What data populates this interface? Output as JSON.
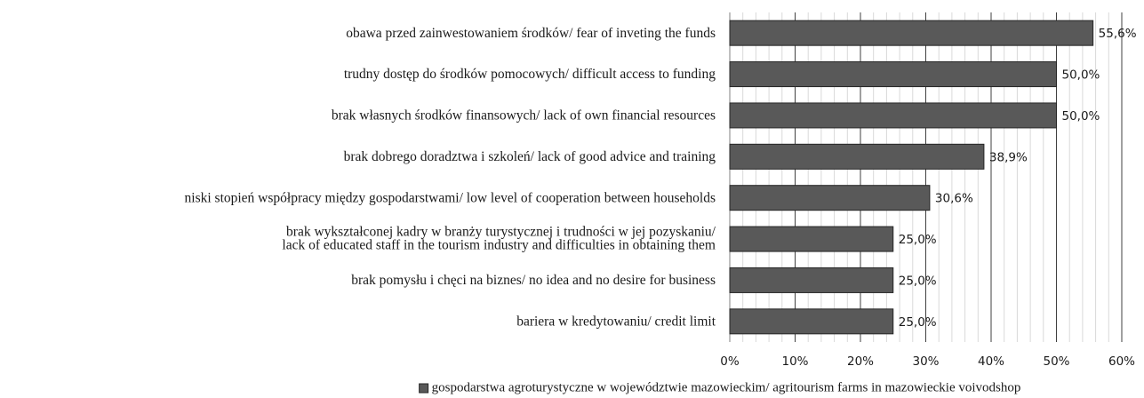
{
  "chart_data": {
    "type": "bar",
    "orientation": "horizontal",
    "categories": [
      "obawa przed zainwestowaniem środków/ fear of inveting the funds",
      "trudny dostęp do środków pomocowych/ difficult access to funding",
      "brak własnych środków finansowych/ lack of own financial resources",
      "brak dobrego doradztwa i szkoleń/ lack of good advice and training",
      "niski stopień współpracy między gospodarstwami/ low level of cooperation between households",
      [
        "brak wykształconej kadry w branży turystycznej i trudności w jej pozyskaniu/",
        "lack of educated staff in the tourism industry and difficulties in obtaining them"
      ],
      "brak pomysłu i chęci na biznes/ no idea and no desire for business",
      "bariera w kredytowaniu/ credit limit"
    ],
    "series": [
      {
        "name": "gospodarstwa agroturystyczne w województwie mazowieckim/ agritourism farms in mazowieckie voivodshop",
        "color": "#595959",
        "values": [
          55.6,
          50.0,
          50.0,
          38.9,
          30.6,
          25.0,
          25.0,
          25.0
        ],
        "value_labels": [
          "55,6%",
          "50,0%",
          "50,0%",
          "38,9%",
          "30,6%",
          "25,0%",
          "25,0%",
          "25,0%"
        ]
      }
    ],
    "xlim": [
      0,
      60
    ],
    "xticks": [
      {
        "value": 0,
        "label": "0%"
      },
      {
        "value": 10,
        "label": "10%"
      },
      {
        "value": 20,
        "label": "20%"
      },
      {
        "value": 30,
        "label": "30%"
      },
      {
        "value": 40,
        "label": "40%"
      },
      {
        "value": 50,
        "label": "50%"
      },
      {
        "value": 60,
        "label": "60%"
      }
    ],
    "minor_xticks": [
      2,
      4,
      6,
      8,
      12,
      14,
      16,
      18,
      22,
      24,
      26,
      28,
      32,
      34,
      36,
      38,
      42,
      44,
      46,
      48,
      52,
      54,
      56,
      58
    ],
    "grid": true,
    "legend": "bottom"
  }
}
